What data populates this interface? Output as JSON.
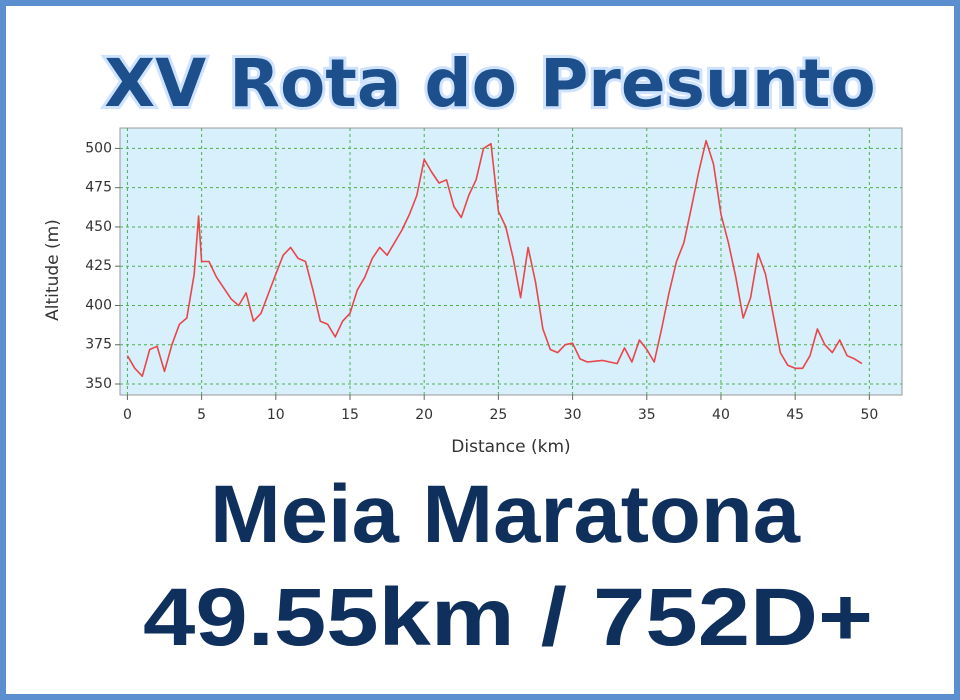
{
  "chart_data": {
    "type": "line",
    "title": "XV Rota do Presunto",
    "annotations": [
      "Meia Maratona",
      "49.55km / 752D+"
    ],
    "x_label": "Distance (km)",
    "y_label": "Altitude (m)",
    "x": [
      0,
      0.5,
      1,
      1.5,
      2,
      2.5,
      3,
      3.5,
      4,
      4.5,
      4.8,
      5,
      5.5,
      6,
      7,
      7.5,
      8,
      8.5,
      9,
      10,
      10.5,
      11,
      11.5,
      12,
      12.5,
      13,
      13.5,
      14,
      14.5,
      15,
      15.5,
      16,
      16.5,
      17,
      17.5,
      18,
      18.5,
      19,
      19.5,
      20,
      20.5,
      21,
      21.5,
      22,
      22.5,
      23,
      23.5,
      24,
      24.5,
      25,
      25.5,
      26,
      26.5,
      27,
      27.5,
      28,
      28.5,
      29,
      29.5,
      30,
      30.5,
      31,
      32,
      33,
      33.5,
      34,
      34.5,
      35,
      35.5,
      36,
      36.5,
      37,
      37.5,
      38,
      38.5,
      39,
      39.5,
      40,
      40.5,
      41,
      41.5,
      42,
      42.5,
      43,
      43.5,
      44,
      44.5,
      45,
      45.5,
      46,
      46.5,
      47,
      47.5,
      48,
      48.5,
      49,
      49.5
    ],
    "series": [
      {
        "name": "Altitude",
        "color": "#e8464a",
        "values": [
          368,
          360,
          355,
          372,
          374,
          358,
          375,
          388,
          392,
          420,
          457,
          428,
          428,
          418,
          404,
          400,
          408,
          390,
          395,
          420,
          432,
          437,
          430,
          428,
          410,
          390,
          388,
          380,
          390,
          395,
          410,
          418,
          430,
          437,
          432,
          440,
          448,
          458,
          470,
          493,
          485,
          478,
          480,
          463,
          456,
          470,
          480,
          500,
          503,
          460,
          450,
          430,
          405,
          437,
          415,
          385,
          372,
          370,
          375,
          376,
          366,
          364,
          365,
          363,
          373,
          364,
          378,
          372,
          364,
          385,
          408,
          428,
          440,
          462,
          485,
          505,
          490,
          458,
          440,
          418,
          392,
          405,
          433,
          420,
          395,
          370,
          362,
          360,
          360,
          368,
          385,
          375,
          370,
          378,
          368,
          366,
          363
        ]
      }
    ],
    "xlim": [
      -0.5,
      52.2
    ],
    "ylim": [
      343,
      513
    ],
    "xticks": [
      0,
      5,
      10,
      15,
      20,
      25,
      30,
      35,
      40,
      45,
      50
    ],
    "yticks": [
      350,
      375,
      400,
      425,
      450,
      475,
      500
    ],
    "grid": true
  }
}
